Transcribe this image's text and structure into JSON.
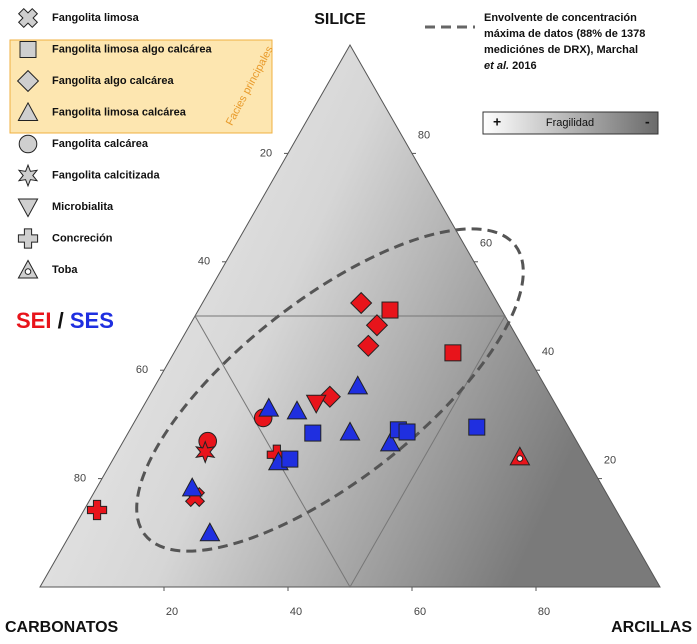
{
  "chart_data": {
    "type": "ternary",
    "apex_top": "SILICE",
    "apex_left": "CARBONATOS",
    "apex_right": "ARCILLAS",
    "arcillas_ticks": [
      20,
      40,
      60,
      80
    ],
    "carbonatos_ticks": [
      20,
      40,
      60,
      80
    ],
    "silice_ticks": [
      20,
      40,
      60,
      80
    ],
    "legend": [
      {
        "label": "Fangolita limosa",
        "marker": "x"
      },
      {
        "label": "Fangolita limosa algo calcárea",
        "marker": "square"
      },
      {
        "label": "Fangolita algo calcárea",
        "marker": "diamond"
      },
      {
        "label": "Fangolita limosa calcárea",
        "marker": "triangle"
      },
      {
        "label": "Fangolita calcárea",
        "marker": "circle"
      },
      {
        "label": "Fangolita calcitizada",
        "marker": "star"
      },
      {
        "label": "Microbialita",
        "marker": "inverted"
      },
      {
        "label": "Concreción",
        "marker": "plus"
      },
      {
        "label": "Toba",
        "marker": "toba"
      }
    ],
    "facies_label": "Facies principales",
    "envelope_lines": [
      "Envolvente de concentración",
      "máxima de datos (88% de 1378",
      "mediciónes de DRX), Marchal"
    ],
    "envelope_italic": "et al.",
    "envelope_tail": "2016",
    "gradient_label": "Fragilidad",
    "gradient_plus": "+",
    "gradient_minus": "-",
    "group_separator": "/",
    "series": [
      {
        "name": "SEI",
        "color": "#e8141b",
        "markers": [
          "square",
          "square",
          "diamond",
          "diamond",
          "diamond",
          "diamond",
          "inverted",
          "circle",
          "circle",
          "star",
          "plus",
          "x",
          "plus",
          "toba"
        ],
        "x": [
          30.9,
          45.0,
          25.6,
          30.2,
          30.7,
          29.2,
          27.6,
          20.4,
          13.6,
          14.2,
          26.0,
          16.7,
          2.1,
          65.4
        ],
        "values": [
          51.1,
          43.2,
          52.4,
          48.3,
          44.5,
          35.1,
          33.9,
          31.2,
          26.9,
          24.9,
          24.4,
          16.6,
          14.2,
          24.0
        ]
      },
      {
        "name": "SES",
        "color": "#1f2fe0",
        "markers": [
          "triangle",
          "triangle",
          "triangle",
          "triangle",
          "triangle",
          "triangle",
          "triangle",
          "triangle",
          "square",
          "square",
          "square",
          "square",
          "square"
        ],
        "x": [
          32.7,
          25.2,
          20.4,
          35.7,
          43.2,
          15.4,
          22.4,
          26.9,
          29.8,
          28.5,
          43.3,
          44.9,
          55.7
        ],
        "values": [
          37.1,
          32.5,
          33.0,
          28.6,
          26.6,
          18.3,
          10.0,
          23.1,
          28.4,
          23.6,
          29.0,
          28.6,
          29.5
        ]
      }
    ]
  }
}
